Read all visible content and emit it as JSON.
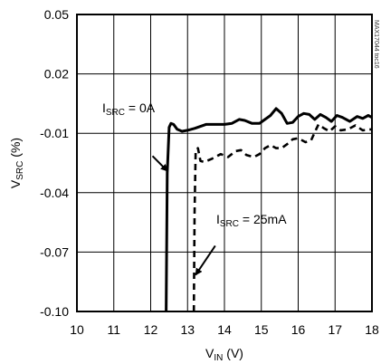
{
  "chart_data": {
    "type": "line",
    "xlabel": {
      "main": "V",
      "sub": "IN",
      "unit": " (V)"
    },
    "ylabel": {
      "main": "V",
      "sub": "SRC",
      "unit": " (%)"
    },
    "xlim": [
      10,
      18
    ],
    "ylim": [
      -0.1,
      0.05
    ],
    "x_ticks": [
      "10",
      "11",
      "12",
      "13",
      "14",
      "15",
      "16",
      "17",
      "18"
    ],
    "y_ticks": [
      {
        "value": 0.05,
        "label": "0.05"
      },
      {
        "value": 0.02,
        "label": "0.02"
      },
      {
        "value": -0.01,
        "label": "-0.01"
      },
      {
        "value": -0.04,
        "label": "-0.04"
      },
      {
        "value": -0.07,
        "label": "-0.07"
      },
      {
        "value": -0.1,
        "label": "-0.10"
      }
    ],
    "grid": true,
    "series": [
      {
        "name": "ISRC = 0A",
        "style": "solid",
        "x": [
          12.42,
          12.45,
          12.5,
          12.55,
          12.62,
          12.72,
          12.85,
          13.0,
          13.2,
          13.5,
          13.8,
          14.0,
          14.2,
          14.4,
          14.55,
          14.75,
          14.95,
          15.1,
          15.25,
          15.4,
          15.55,
          15.7,
          15.85,
          16.0,
          16.15,
          16.3,
          16.45,
          16.6,
          16.75,
          16.9,
          17.05,
          17.2,
          17.4,
          17.6,
          17.75,
          17.9,
          18.0
        ],
        "y": [
          -0.1,
          -0.03,
          -0.007,
          -0.005,
          -0.0055,
          -0.008,
          -0.009,
          -0.0085,
          -0.0075,
          -0.0055,
          -0.0055,
          -0.0055,
          -0.005,
          -0.003,
          -0.0035,
          -0.005,
          -0.005,
          -0.003,
          -0.001,
          0.0025,
          0.0,
          -0.005,
          -0.0045,
          -0.0015,
          0.0,
          -0.0005,
          -0.003,
          -0.0005,
          -0.002,
          -0.004,
          -0.001,
          -0.002,
          -0.004,
          -0.0015,
          -0.0025,
          -0.001,
          -0.002
        ]
      },
      {
        "name": "ISRC = 25mA",
        "style": "dashed",
        "x": [
          13.17,
          13.19,
          13.22,
          13.28,
          13.35,
          13.45,
          13.65,
          13.9,
          14.1,
          14.3,
          14.45,
          14.6,
          14.8,
          14.95,
          15.1,
          15.25,
          15.4,
          15.55,
          15.7,
          15.85,
          16.0,
          16.2,
          16.35,
          16.45,
          16.55,
          16.7,
          16.85,
          17.0,
          17.15,
          17.35,
          17.55,
          17.75,
          18.0
        ],
        "y": [
          -0.1,
          -0.05,
          -0.019,
          -0.0175,
          -0.024,
          -0.0245,
          -0.023,
          -0.0205,
          -0.022,
          -0.019,
          -0.0185,
          -0.021,
          -0.022,
          -0.0205,
          -0.0175,
          -0.016,
          -0.0175,
          -0.0175,
          -0.0155,
          -0.013,
          -0.0125,
          -0.0145,
          -0.0135,
          -0.0095,
          -0.0055,
          -0.0075,
          -0.009,
          -0.0065,
          -0.0085,
          -0.008,
          -0.006,
          -0.0085,
          -0.008
        ]
      }
    ],
    "annotations": [
      {
        "main": "I",
        "sub": "SRC",
        "rest": " = 0A",
        "anchor": "ISRC = 0A",
        "arrow_from": [
          12.05,
          -0.0215
        ],
        "arrow_to": [
          12.45,
          -0.029
        ]
      },
      {
        "main": "I",
        "sub": "SRC",
        "rest": " = 25mA",
        "anchor": "ISRC = 25mA",
        "arrow_from": [
          13.75,
          -0.0668
        ],
        "arrow_to": [
          13.22,
          -0.0815
        ]
      }
    ],
    "watermark": "MAX17044 toc16"
  }
}
